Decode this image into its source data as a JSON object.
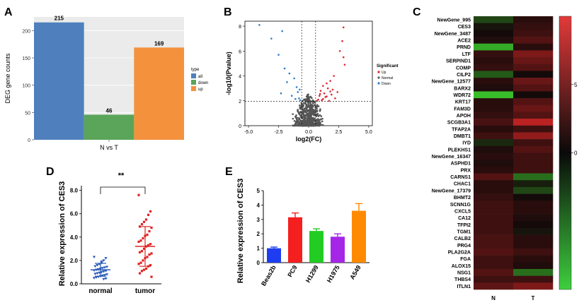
{
  "panel_labels": {
    "a": "A",
    "b": "B",
    "c": "C",
    "d": "D",
    "e": "E"
  },
  "chart_data": [
    {
      "id": "A",
      "type": "bar",
      "categories": [
        "all",
        "down",
        "up"
      ],
      "values": [
        215,
        46,
        169
      ],
      "colors": [
        "#4f80bd",
        "#5aa55a",
        "#f4913d"
      ],
      "xlabel": "N vs T",
      "ylabel": "DEG gene counts",
      "yticks": [
        0,
        50,
        100,
        150,
        200
      ],
      "ylim": [
        0,
        225
      ],
      "legend_title": "type",
      "legend": [
        "all",
        "down",
        "up"
      ]
    },
    {
      "id": "B",
      "type": "scatter",
      "title": "",
      "xlabel": "log2(FC)",
      "ylabel": "-log10(Pvalue)",
      "xticks": [
        -5.0,
        -2.5,
        0.0,
        2.5,
        5.0
      ],
      "xtick_labels": [
        "-5.0",
        "-2.5",
        "0.0",
        "2.5",
        "5.0"
      ],
      "yticks": [
        0,
        2,
        4,
        6,
        8
      ],
      "xlim": [
        -5.3,
        5.3
      ],
      "ylim": [
        0,
        8.4
      ],
      "thresholds": {
        "x": [
          -0.58,
          0.58
        ],
        "y": 1.97
      },
      "legend_title": "Significant",
      "legend": [
        {
          "name": "Up",
          "color": "#e0262f"
        },
        {
          "name": "Normal",
          "color": "#5a5a5a"
        },
        {
          "name": "Down",
          "color": "#2f7ec4"
        }
      ],
      "up_points": [
        [
          2.9,
          7.9
        ],
        [
          2.8,
          6.8
        ],
        [
          2.6,
          6.0
        ],
        [
          2.9,
          5.5
        ],
        [
          3.0,
          4.9
        ],
        [
          2.1,
          4.0
        ],
        [
          1.8,
          3.6
        ],
        [
          1.5,
          3.4
        ],
        [
          1.2,
          3.2
        ],
        [
          1.6,
          3.0
        ],
        [
          2.0,
          2.9
        ],
        [
          1.0,
          2.8
        ],
        [
          1.3,
          2.6
        ],
        [
          1.9,
          2.5
        ],
        [
          0.9,
          2.4
        ],
        [
          1.4,
          2.3
        ],
        [
          2.2,
          2.2
        ],
        [
          0.8,
          2.1
        ],
        [
          1.1,
          2.05
        ],
        [
          1.7,
          2.0
        ],
        [
          0.7,
          2.0
        ],
        [
          1.2,
          2.15
        ],
        [
          1.5,
          2.35
        ],
        [
          0.95,
          2.55
        ],
        [
          2.4,
          2.7
        ],
        [
          1.8,
          2.75
        ]
      ],
      "down_points": [
        [
          -4.1,
          8.1
        ],
        [
          -2.2,
          7.6
        ],
        [
          -3.1,
          7.0
        ],
        [
          -2.5,
          5.7
        ],
        [
          -2.0,
          4.6
        ],
        [
          -1.6,
          4.2
        ],
        [
          -1.2,
          3.8
        ],
        [
          -1.8,
          3.5
        ],
        [
          -1.0,
          3.1
        ],
        [
          -0.9,
          2.7
        ],
        [
          -1.4,
          2.4
        ],
        [
          -0.8,
          2.2
        ],
        [
          -0.7,
          2.05
        ],
        [
          -1.1,
          2.15
        ],
        [
          -2.3,
          2.6
        ],
        [
          -0.75,
          2.9
        ]
      ]
    },
    {
      "id": "C",
      "type": "heatmap",
      "columns": [
        "N",
        "T"
      ],
      "rows": [
        "NewGene_995",
        "CES3",
        "NewGene_3487",
        "ACE2",
        "PRND",
        "LTF",
        "SERPIND1",
        "COMP",
        "CILP2",
        "NewGene_12577",
        "BARX2",
        "WDR72",
        "KRT17",
        "FAM3D",
        "APOH",
        "SCGB3A1",
        "TFAP2A",
        "DMBT1",
        "IYD",
        "PLEKHS1",
        "NewGene_16347",
        "ASPHD1",
        "PRX",
        "CARNS1",
        "CHAC1",
        "NewGene_17379",
        "BHMT2",
        "SCNN1G",
        "CXCL5",
        "CA12",
        "TFPI2",
        "TGM1",
        "CALB2",
        "PRG4",
        "PLA2G2A",
        "FGA",
        "ALOX15",
        "NSG1",
        "THBS4",
        "ITLN1"
      ],
      "values": [
        [
          -3,
          1
        ],
        [
          -0.5,
          1.5
        ],
        [
          0,
          2
        ],
        [
          0.5,
          3
        ],
        [
          -8,
          1
        ],
        [
          1.5,
          5
        ],
        [
          1,
          4
        ],
        [
          1.5,
          3
        ],
        [
          -4,
          0
        ],
        [
          1,
          4
        ],
        [
          0.5,
          3
        ],
        [
          -9,
          0
        ],
        [
          1,
          3
        ],
        [
          1,
          4
        ],
        [
          1.5,
          3
        ],
        [
          2.5,
          8
        ],
        [
          1,
          2
        ],
        [
          2,
          6
        ],
        [
          -1.5,
          2
        ],
        [
          0.5,
          3
        ],
        [
          1,
          2
        ],
        [
          0.5,
          2
        ],
        [
          1,
          2
        ],
        [
          3,
          -5
        ],
        [
          1,
          -1
        ],
        [
          1,
          -3
        ],
        [
          1.5,
          0
        ],
        [
          2,
          1
        ],
        [
          2,
          1
        ],
        [
          2,
          0.5
        ],
        [
          2,
          0
        ],
        [
          2,
          -0.5
        ],
        [
          2.5,
          1
        ],
        [
          2.5,
          1
        ],
        [
          3,
          2
        ],
        [
          2,
          1
        ],
        [
          2,
          0.5
        ],
        [
          3,
          -5
        ],
        [
          2,
          2
        ],
        [
          3.5,
          5
        ]
      ],
      "colorbar_ticks": [
        0,
        5
      ],
      "vmin": -10,
      "vmax": 10
    },
    {
      "id": "D",
      "type": "scatter",
      "categories": [
        "normal",
        "tumor"
      ],
      "ylabel": "Relative expression of CES3",
      "yticks": [
        0.0,
        2.0,
        4.0,
        6.0,
        8.0
      ],
      "ytick_labels": [
        "0.0",
        "2.0",
        "4.0",
        "6.0",
        "8.0"
      ],
      "ylim": [
        0,
        8.4
      ],
      "means": [
        1.2,
        3.2
      ],
      "sd": [
        0.55,
        1.7
      ],
      "significance": "**",
      "colors": [
        "#2a5cb8",
        "#e02424"
      ],
      "normal_values": [
        2.3,
        2.2,
        2.0,
        1.8,
        1.7,
        1.6,
        1.5,
        1.45,
        1.4,
        1.35,
        1.3,
        1.25,
        1.2,
        1.15,
        1.1,
        1.05,
        1.0,
        0.95,
        0.9,
        0.85,
        0.8,
        0.75,
        0.7,
        0.65,
        0.6,
        0.55,
        0.5,
        0.45,
        0.4,
        1.9
      ],
      "tumor_values": [
        7.6,
        6.2,
        5.9,
        5.5,
        5.3,
        5.1,
        4.9,
        4.8,
        4.5,
        4.2,
        4.1,
        3.9,
        3.7,
        3.6,
        3.4,
        3.3,
        3.2,
        3.0,
        2.8,
        2.7,
        2.6,
        2.5,
        2.3,
        2.2,
        2.0,
        1.8,
        1.7,
        1.6,
        1.5,
        1.3,
        1.2,
        1.1,
        0.9,
        0.6
      ]
    },
    {
      "id": "E",
      "type": "bar",
      "categories": [
        "Beas2b",
        "PC9",
        "H1299",
        "H1975",
        "A549"
      ],
      "values": [
        1.0,
        3.15,
        2.2,
        1.8,
        3.6
      ],
      "errors": [
        0.08,
        0.3,
        0.15,
        0.2,
        0.5
      ],
      "colors": [
        "#1f3df0",
        "#f51f1f",
        "#22cc22",
        "#a526e6",
        "#ff8a00"
      ],
      "ylabel": "Relative expression of CES3",
      "yticks": [
        0,
        1,
        2,
        3,
        4,
        5
      ],
      "ylim": [
        0,
        5
      ]
    }
  ]
}
